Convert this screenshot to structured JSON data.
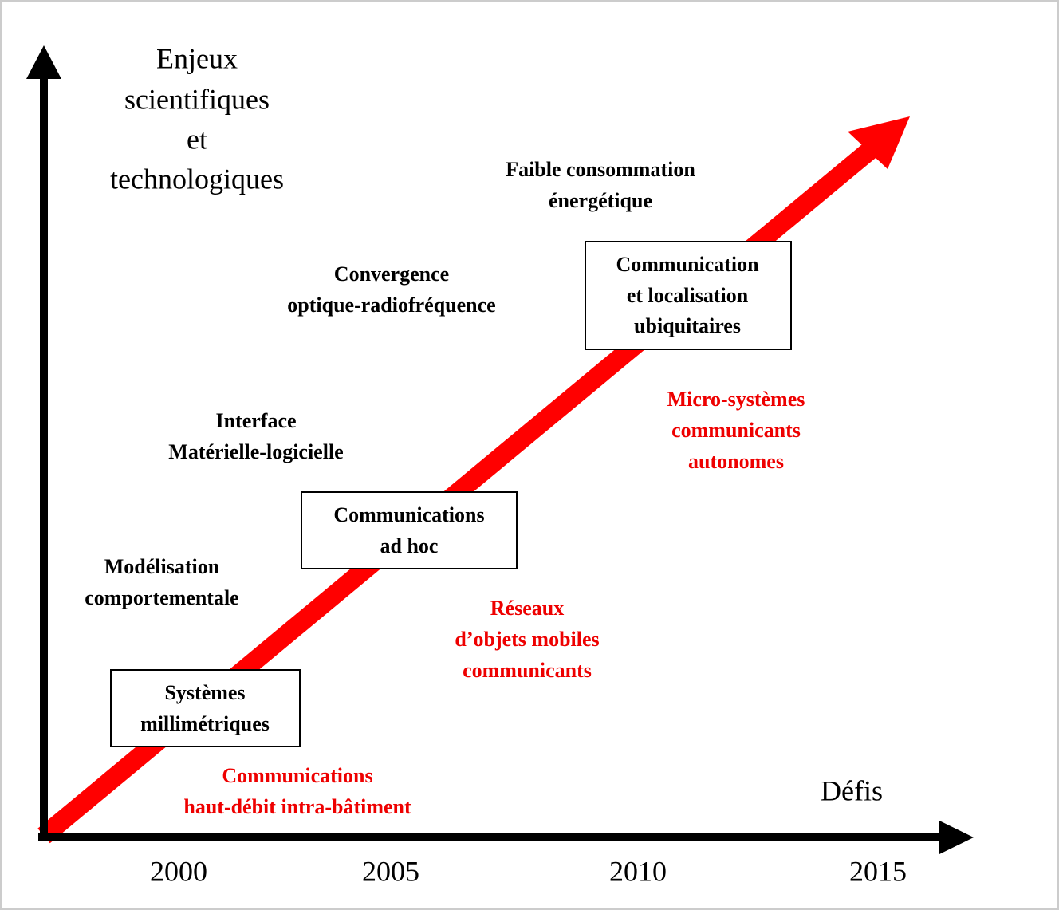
{
  "y_axis_label": [
    "Enjeux",
    "scientifiques",
    "et",
    "technologiques"
  ],
  "x_axis_label": "Défis",
  "years": [
    "2000",
    "2005",
    "2010",
    "2015"
  ],
  "challenges": [
    [
      "Modélisation",
      "comportementale"
    ],
    [
      "Interface",
      "Matérielle-logicielle"
    ],
    [
      "Convergence",
      "optique-radiofréquence"
    ],
    [
      "Faible consommation",
      "énergétique"
    ]
  ],
  "boxes": [
    [
      "Systèmes",
      "millimétriques"
    ],
    [
      "Communications",
      "ad hoc"
    ],
    [
      "Communication",
      "et localisation",
      "ubiquitaires"
    ]
  ],
  "applications": [
    [
      "Communications",
      "haut-débit intra-bâtiment"
    ],
    [
      "Réseaux",
      "d’objets mobiles",
      "communicants"
    ],
    [
      "Micro-systèmes",
      "communicants",
      "autonomes"
    ]
  ]
}
